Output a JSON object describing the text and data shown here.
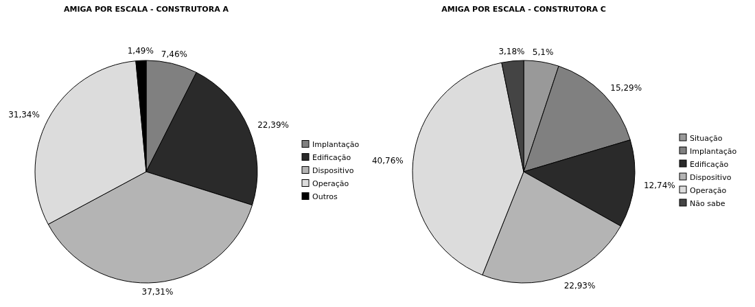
{
  "chart_data": [
    {
      "type": "pie",
      "title": "AMIGA POR ESCALA - CONSTRUTORA A",
      "categories": [
        "Implantação",
        "Edificação",
        "Dispositivo",
        "Operação",
        "Outros"
      ],
      "values": [
        7.46,
        22.39,
        37.31,
        31.34,
        1.49
      ],
      "value_labels": [
        "7,46%",
        "22,39%",
        "37,31%",
        "31,34%",
        "1,49%"
      ],
      "colors": [
        "#808080",
        "#2a2a2a",
        "#b4b4b4",
        "#dcdcdc",
        "#000000"
      ],
      "legend": "right"
    },
    {
      "type": "pie",
      "title": "AMIGA POR ESCALA - CONSTRUTORA C",
      "categories": [
        "Situação",
        "Implantação",
        "Edificação",
        "Dispositivo",
        "Operação",
        "Não sabe"
      ],
      "values": [
        5.1,
        15.29,
        12.74,
        22.93,
        40.76,
        3.18
      ],
      "value_labels": [
        "5,1%",
        "15,29%",
        "12,74%",
        "22,93%",
        "40,76%",
        "3,18%"
      ],
      "colors": [
        "#999999",
        "#808080",
        "#2a2a2a",
        "#b4b4b4",
        "#dcdcdc",
        "#444444"
      ],
      "legend": "right"
    }
  ]
}
